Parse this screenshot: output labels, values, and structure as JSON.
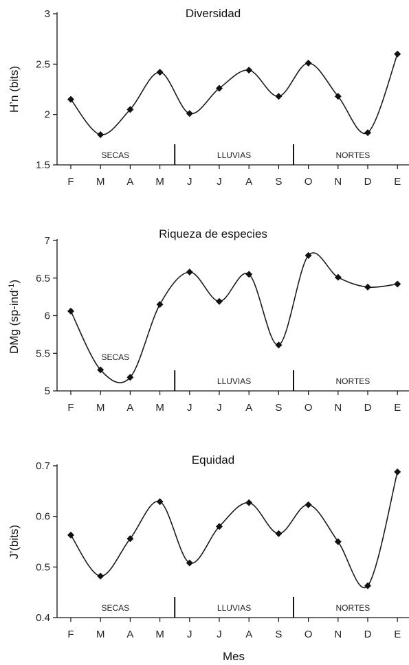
{
  "colors": {
    "line": "#1a1a1a",
    "marker": "#111111",
    "axis": "#111111"
  },
  "xlabel": "Mes",
  "chart_data": [
    {
      "type": "line",
      "title": "Diversidad",
      "ylabel": "H’n (bits)",
      "ylabel_sup": "",
      "ylabel_tail": "",
      "ylim": [
        1.5,
        3
      ],
      "yticks": [
        1.5,
        2,
        2.5,
        3
      ],
      "categories": [
        "F",
        "M",
        "A",
        "M",
        "J",
        "J",
        "A",
        "S",
        "O",
        "N",
        "D",
        "E"
      ],
      "values": [
        2.15,
        1.8,
        2.05,
        2.42,
        2.01,
        2.26,
        2.44,
        2.18,
        2.51,
        2.18,
        1.82,
        2.6
      ],
      "seasons": [
        {
          "label": "SECAS",
          "start": 0,
          "end": 3
        },
        {
          "label": "LLUVIAS",
          "start": 4,
          "end": 7
        },
        {
          "label": "NORTES",
          "start": 8,
          "end": 11
        }
      ],
      "dividers_after": [
        3,
        7
      ]
    },
    {
      "type": "line",
      "title": "Riqueza de especies",
      "ylabel": "DMg  (sp-ind",
      "ylabel_sup": "-1",
      "ylabel_tail": ")",
      "ylim": [
        5,
        7
      ],
      "yticks": [
        5,
        5.5,
        6,
        6.5,
        7
      ],
      "categories": [
        "F",
        "M",
        "A",
        "M",
        "J",
        "J",
        "A",
        "S",
        "O",
        "N",
        "D",
        "E"
      ],
      "values": [
        6.06,
        5.28,
        5.18,
        6.15,
        6.58,
        6.19,
        6.55,
        5.61,
        6.8,
        6.51,
        6.38,
        6.42
      ],
      "seasons": [
        {
          "label": "SECAS",
          "start": 0,
          "end": 3
        },
        {
          "label": "LLUVIAS",
          "start": 4,
          "end": 7
        },
        {
          "label": "NORTES",
          "start": 8,
          "end": 11
        }
      ],
      "dividers_after": [
        3,
        7
      ]
    },
    {
      "type": "line",
      "title": "Equidad",
      "ylabel": "J’(bits)",
      "ylabel_sup": "",
      "ylabel_tail": "",
      "ylim": [
        0.4,
        0.7
      ],
      "yticks": [
        0.4,
        0.5,
        0.6,
        0.7
      ],
      "categories": [
        "F",
        "M",
        "A",
        "M",
        "J",
        "J",
        "A",
        "S",
        "O",
        "N",
        "D",
        "E"
      ],
      "values": [
        0.563,
        0.482,
        0.556,
        0.629,
        0.508,
        0.58,
        0.627,
        0.566,
        0.623,
        0.55,
        0.463,
        0.688
      ],
      "seasons": [
        {
          "label": "SECAS",
          "start": 0,
          "end": 3
        },
        {
          "label": "LLUVIAS",
          "start": 4,
          "end": 7
        },
        {
          "label": "NORTES",
          "start": 8,
          "end": 11
        }
      ],
      "dividers_after": [
        3,
        7
      ]
    }
  ]
}
